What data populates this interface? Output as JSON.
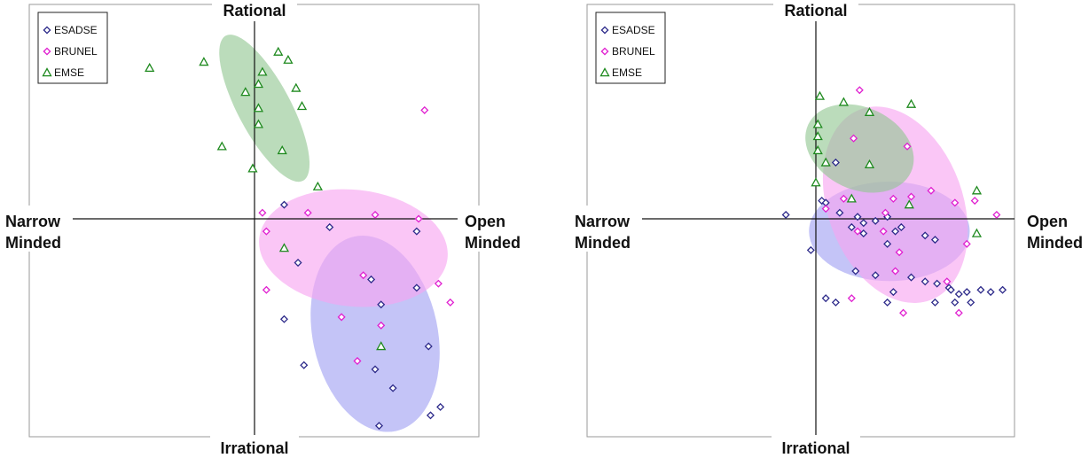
{
  "colors": {
    "ESADSE": "#2d2a8a",
    "BRUNEL": "#e01fd0",
    "EMSE": "#1f8a1f",
    "fill_ESADSE": "#9f9ff2",
    "fill_BRUNEL": "#f7a3f0",
    "fill_EMSE": "#92c792"
  },
  "chart_data": [
    {
      "type": "scatter",
      "title": "",
      "axis_labels": {
        "top": "Rational",
        "bottom": "Irrational",
        "left": [
          "Narrow",
          "Minded"
        ],
        "right": [
          "Open",
          "Minded"
        ]
      },
      "xlim": [
        -1,
        1
      ],
      "ylim": [
        -1,
        1
      ],
      "legend": {
        "placement": "top-left",
        "entries": [
          "ESADSE",
          "BRUNEL",
          "EMSE"
        ]
      },
      "series": [
        {
          "name": "ESADSE",
          "marker": "diamond",
          "points": [
            [
              0.15,
              0.07
            ],
            [
              0.38,
              -0.04
            ],
            [
              0.22,
              -0.21
            ],
            [
              0.59,
              -0.29
            ],
            [
              0.82,
              -0.33
            ],
            [
              0.64,
              -0.41
            ],
            [
              0.15,
              -0.48
            ],
            [
              0.88,
              -0.61
            ],
            [
              0.25,
              -0.7
            ],
            [
              0.61,
              -0.72
            ],
            [
              0.7,
              -0.81
            ],
            [
              0.94,
              -0.9
            ],
            [
              0.89,
              -0.94
            ],
            [
              0.63,
              -0.99
            ],
            [
              0.82,
              -0.06
            ]
          ],
          "ellipse": {
            "cx": 0.61,
            "cy": -0.55,
            "rx": 0.33,
            "ry": 0.46,
            "rotate": -12
          }
        },
        {
          "name": "BRUNEL",
          "marker": "diamond",
          "points": [
            [
              0.86,
              0.54
            ],
            [
              0.04,
              0.03
            ],
            [
              0.27,
              0.03
            ],
            [
              0.61,
              0.02
            ],
            [
              0.83,
              0.0
            ],
            [
              0.06,
              -0.06
            ],
            [
              0.55,
              -0.27
            ],
            [
              0.93,
              -0.31
            ],
            [
              0.06,
              -0.34
            ],
            [
              0.99,
              -0.4
            ],
            [
              0.44,
              -0.47
            ],
            [
              0.64,
              -0.51
            ],
            [
              0.52,
              -0.68
            ]
          ],
          "ellipse": {
            "cx": 0.5,
            "cy": -0.14,
            "rx": 0.5,
            "ry": 0.27,
            "rotate": 6
          }
        },
        {
          "name": "EMSE",
          "marker": "triangle",
          "points": [
            [
              -0.58,
              0.75
            ],
            [
              -0.28,
              0.78
            ],
            [
              -0.05,
              0.63
            ],
            [
              0.17,
              0.79
            ],
            [
              0.04,
              0.73
            ],
            [
              0.21,
              0.65
            ],
            [
              0.02,
              0.67
            ],
            [
              0.24,
              0.56
            ],
            [
              0.02,
              0.55
            ],
            [
              0.02,
              0.47
            ],
            [
              -0.18,
              0.36
            ],
            [
              0.14,
              0.34
            ],
            [
              -0.01,
              0.25
            ],
            [
              0.32,
              0.16
            ],
            [
              0.15,
              -0.14
            ],
            [
              0.64,
              -0.61
            ],
            [
              0.12,
              0.83
            ]
          ],
          "ellipse": {
            "cx": 0.05,
            "cy": 0.55,
            "rx": 0.14,
            "ry": 0.38,
            "rotate": -28
          }
        }
      ]
    },
    {
      "type": "scatter",
      "title": "",
      "axis_labels": {
        "top": "Rational",
        "bottom": "Irrational",
        "left": [
          "Narrow",
          "Minded"
        ],
        "right": [
          "Open",
          "Minded"
        ]
      },
      "xlim": [
        -1,
        1
      ],
      "ylim": [
        -1,
        1
      ],
      "legend": {
        "placement": "top-left",
        "entries": [
          "ESADSE",
          "BRUNEL",
          "EMSE"
        ]
      },
      "series": [
        {
          "name": "ESADSE",
          "marker": "diamond",
          "points": [
            [
              -0.18,
              0.02
            ],
            [
              0.1,
              0.28
            ],
            [
              0.03,
              0.09
            ],
            [
              0.05,
              0.08
            ],
            [
              0.36,
              0.01
            ],
            [
              0.12,
              0.03
            ],
            [
              0.24,
              -0.02
            ],
            [
              0.3,
              -0.01
            ],
            [
              0.21,
              0.01
            ],
            [
              0.18,
              -0.04
            ],
            [
              0.24,
              -0.07
            ],
            [
              0.43,
              -0.04
            ],
            [
              0.4,
              -0.06
            ],
            [
              0.55,
              -0.08
            ],
            [
              0.6,
              -0.1
            ],
            [
              0.36,
              -0.12
            ],
            [
              -0.03,
              -0.15
            ],
            [
              0.2,
              -0.25
            ],
            [
              0.3,
              -0.27
            ],
            [
              0.48,
              -0.28
            ],
            [
              0.55,
              -0.3
            ],
            [
              0.61,
              -0.31
            ],
            [
              0.67,
              -0.33
            ],
            [
              0.39,
              -0.35
            ],
            [
              0.05,
              -0.38
            ],
            [
              0.68,
              -0.34
            ],
            [
              0.76,
              -0.35
            ],
            [
              0.83,
              -0.34
            ],
            [
              0.1,
              -0.4
            ],
            [
              0.36,
              -0.4
            ],
            [
              0.6,
              -0.4
            ],
            [
              0.7,
              -0.4
            ],
            [
              0.78,
              -0.4
            ],
            [
              0.94,
              -0.34
            ],
            [
              0.88,
              -0.35
            ],
            [
              0.72,
              -0.36
            ]
          ],
          "ellipse": {
            "cx": 0.37,
            "cy": -0.06,
            "rx": 0.44,
            "ry": 0.23,
            "rotate": 0
          }
        },
        {
          "name": "BRUNEL",
          "marker": "diamond",
          "points": [
            [
              0.22,
              0.64
            ],
            [
              0.19,
              0.4
            ],
            [
              0.46,
              0.36
            ],
            [
              0.35,
              0.03
            ],
            [
              0.14,
              0.1
            ],
            [
              0.05,
              0.05
            ],
            [
              0.39,
              0.1
            ],
            [
              0.48,
              0.11
            ],
            [
              0.58,
              0.14
            ],
            [
              0.7,
              0.08
            ],
            [
              0.8,
              0.09
            ],
            [
              0.91,
              0.02
            ],
            [
              0.21,
              -0.06
            ],
            [
              0.42,
              -0.16
            ],
            [
              0.4,
              -0.25
            ],
            [
              0.66,
              -0.3
            ],
            [
              0.18,
              -0.38
            ],
            [
              0.44,
              -0.45
            ],
            [
              0.72,
              -0.45
            ],
            [
              0.76,
              -0.12
            ],
            [
              0.34,
              -0.06
            ]
          ],
          "ellipse": {
            "cx": 0.4,
            "cy": 0.07,
            "rx": 0.37,
            "ry": 0.47,
            "rotate": -20
          }
        },
        {
          "name": "EMSE",
          "marker": "triangle",
          "points": [
            [
              0.02,
              0.61
            ],
            [
              0.14,
              0.58
            ],
            [
              0.27,
              0.53
            ],
            [
              0.48,
              0.57
            ],
            [
              0.01,
              0.47
            ],
            [
              0.01,
              0.41
            ],
            [
              0.01,
              0.34
            ],
            [
              0.05,
              0.28
            ],
            [
              0.27,
              0.27
            ],
            [
              0.0,
              0.18
            ],
            [
              0.18,
              0.1
            ],
            [
              0.47,
              0.07
            ],
            [
              0.81,
              0.14
            ],
            [
              0.81,
              -0.07
            ]
          ],
          "ellipse": {
            "cx": 0.22,
            "cy": 0.35,
            "rx": 0.31,
            "ry": 0.19,
            "rotate": 25
          }
        }
      ]
    }
  ]
}
